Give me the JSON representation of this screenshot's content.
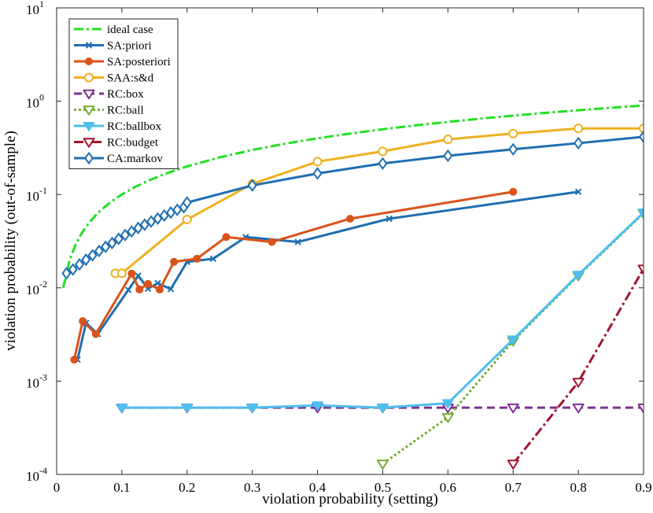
{
  "chart_data": {
    "type": "line",
    "title": "",
    "xlabel": "violation probability (setting)",
    "ylabel": "violation probability (out-of-sample)",
    "x_scale": "linear",
    "y_scale": "log",
    "xlim": [
      0,
      0.9
    ],
    "ylim": [
      0.0001,
      10
    ],
    "x_ticks": [
      0,
      0.1,
      0.2,
      0.3,
      0.4,
      0.5,
      0.6,
      0.7,
      0.8,
      0.9
    ],
    "x_tick_labels": [
      "0",
      "0.1",
      "0.2",
      "0.3",
      "0.4",
      "0.5",
      "0.6",
      "0.7",
      "0.8",
      "0.9"
    ],
    "y_ticks": [
      0.0001,
      0.001,
      0.01,
      0.1,
      1,
      10
    ],
    "y_tick_labels": [
      {
        "base": "10",
        "exp": "-4"
      },
      {
        "base": "10",
        "exp": "-3"
      },
      {
        "base": "10",
        "exp": "-2"
      },
      {
        "base": "10",
        "exp": "-1"
      },
      {
        "base": "10",
        "exp": "0"
      },
      {
        "base": "10",
        "exp": "1"
      }
    ],
    "legend_position": "top-left",
    "series": [
      {
        "name": "ideal case",
        "color": "#22e022",
        "dash": "12,4,3,4",
        "marker": "none",
        "width": 3,
        "x": [
          0.01,
          0.02,
          0.03,
          0.04,
          0.05,
          0.06,
          0.07,
          0.08,
          0.09,
          0.1,
          0.12,
          0.14,
          0.16,
          0.18,
          0.2,
          0.25,
          0.3,
          0.35,
          0.4,
          0.45,
          0.5,
          0.55,
          0.6,
          0.65,
          0.7,
          0.75,
          0.8,
          0.85,
          0.9
        ],
        "y": [
          0.01,
          0.02,
          0.03,
          0.04,
          0.05,
          0.06,
          0.07,
          0.08,
          0.09,
          0.1,
          0.12,
          0.14,
          0.16,
          0.18,
          0.2,
          0.25,
          0.3,
          0.35,
          0.4,
          0.45,
          0.5,
          0.55,
          0.6,
          0.65,
          0.7,
          0.75,
          0.8,
          0.85,
          0.9
        ]
      },
      {
        "name": "SA:priori",
        "color": "#1f6fb2",
        "dash": "",
        "marker": "x",
        "width": 3,
        "x": [
          0.032,
          0.045,
          0.063,
          0.11,
          0.125,
          0.14,
          0.155,
          0.175,
          0.2,
          0.24,
          0.29,
          0.37,
          0.51,
          0.8
        ],
        "y": [
          0.0017,
          0.0042,
          0.0032,
          0.0095,
          0.0135,
          0.0098,
          0.0112,
          0.0097,
          0.019,
          0.0205,
          0.035,
          0.031,
          0.055,
          0.107
        ]
      },
      {
        "name": "SA:posteriori",
        "color": "#d95319",
        "dash": "",
        "marker": "dot",
        "width": 3,
        "x": [
          0.027,
          0.04,
          0.06,
          0.115,
          0.127,
          0.14,
          0.158,
          0.18,
          0.215,
          0.26,
          0.33,
          0.45,
          0.7
        ],
        "y": [
          0.0017,
          0.0044,
          0.0032,
          0.0142,
          0.0096,
          0.011,
          0.0096,
          0.019,
          0.0205,
          0.035,
          0.031,
          0.055,
          0.107
        ]
      },
      {
        "name": "SAA:s&d",
        "color": "#edb120",
        "dash": "",
        "marker": "circle",
        "width": 3,
        "x": [
          0.09,
          0.1,
          0.2,
          0.3,
          0.4,
          0.5,
          0.6,
          0.7,
          0.8,
          0.9
        ],
        "y": [
          0.0143,
          0.0143,
          0.054,
          0.13,
          0.225,
          0.29,
          0.39,
          0.45,
          0.51,
          0.51
        ]
      },
      {
        "name": "RC:box",
        "color": "#7e2f8e",
        "dash": "10,6",
        "marker": "tri-hollow",
        "width": 3,
        "x": [
          0.1,
          0.2,
          0.3,
          0.4,
          0.5,
          0.6,
          0.7,
          0.8,
          0.9
        ],
        "y": [
          0.00052,
          0.00052,
          0.00052,
          0.00052,
          0.00052,
          0.00052,
          0.00052,
          0.00052,
          0.00052
        ]
      },
      {
        "name": "RC:ball",
        "color": "#77ac30",
        "dash": "3,3",
        "marker": "tri-hollow",
        "width": 3,
        "x": [
          0.5,
          0.6,
          0.7,
          0.8,
          0.9
        ],
        "y": [
          0.00013,
          0.00041,
          0.0027,
          0.0135,
          0.063
        ]
      },
      {
        "name": "RC:ballbox",
        "color": "#4dbeee",
        "dash": "",
        "marker": "tri-filled",
        "width": 3,
        "x": [
          0.1,
          0.2,
          0.3,
          0.4,
          0.5,
          0.6,
          0.7,
          0.8,
          0.9
        ],
        "y": [
          0.00052,
          0.00052,
          0.00052,
          0.00055,
          0.00052,
          0.00058,
          0.0028,
          0.0138,
          0.064
        ]
      },
      {
        "name": "RC:budget",
        "color": "#a2142f",
        "dash": "12,4,3,4",
        "marker": "tri-hollow",
        "width": 3,
        "x": [
          0.7,
          0.8,
          0.9
        ],
        "y": [
          0.00013,
          0.00098,
          0.016
        ]
      },
      {
        "name": "CA:markov",
        "color": "#1f6fb2",
        "dash": "",
        "marker": "diamond",
        "width": 3,
        "x": [
          0.015,
          0.025,
          0.035,
          0.045,
          0.055,
          0.065,
          0.075,
          0.085,
          0.095,
          0.105,
          0.115,
          0.125,
          0.135,
          0.145,
          0.155,
          0.165,
          0.175,
          0.185,
          0.195,
          0.2,
          0.3,
          0.4,
          0.5,
          0.6,
          0.7,
          0.8,
          0.9
        ],
        "y": [
          0.0143,
          0.0157,
          0.0178,
          0.02,
          0.0223,
          0.0248,
          0.0275,
          0.0302,
          0.0335,
          0.0368,
          0.0402,
          0.0438,
          0.0475,
          0.0513,
          0.0553,
          0.0595,
          0.064,
          0.0685,
          0.073,
          0.082,
          0.125,
          0.168,
          0.215,
          0.26,
          0.305,
          0.355,
          0.415
        ]
      }
    ]
  }
}
